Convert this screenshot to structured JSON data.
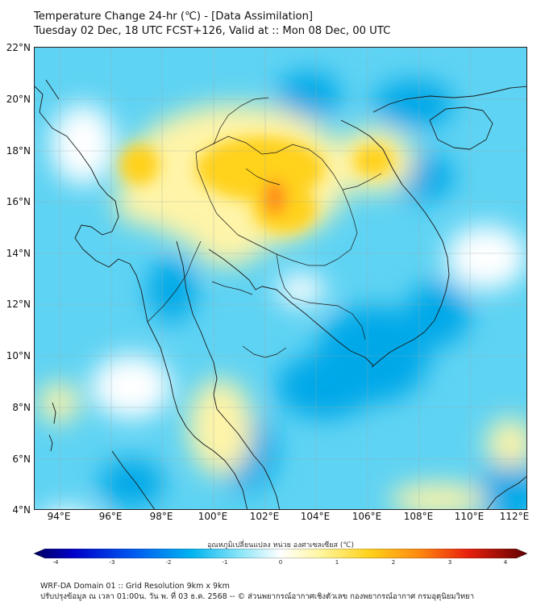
{
  "title": {
    "line1": "Temperature Change 24-hr (℃) - [Data Assimilation]",
    "line2": "Tuesday 02 Dec, 18 UTC FCST+126, Valid at :: Mon 08 Dec, 00 UTC"
  },
  "map": {
    "lat_labels": [
      "22°N",
      "20°N",
      "18°N",
      "16°N",
      "14°N",
      "12°N",
      "10°N",
      "8°N",
      "6°N",
      "4°N"
    ],
    "lon_labels": [
      "94°E",
      "96°E",
      "98°E",
      "100°E",
      "102°E",
      "104°E",
      "106°E",
      "108°E",
      "110°E",
      "112°E"
    ],
    "colors": {
      "cold_strong": "#00a8e8",
      "cold": "#5fd3f3",
      "neutral": "#ffffff",
      "warm_light": "#fff4a8",
      "warm": "#ffd21a",
      "hot": "#ff8c1a",
      "coast": "#1a1a1a"
    }
  },
  "colorbar": {
    "label": "อุณหภูมิเปลี่ยนแปลง หน่วย องศาเซลเซียส (℃)",
    "ticks": [
      "-4",
      "-3",
      "-2",
      "-1",
      "0",
      "1",
      "2",
      "3",
      "4"
    ]
  },
  "footer": {
    "line1": "WRF-DA Domain 01 :: Grid Resolution 9km x 9km",
    "line2": "ปรับปรุงข้อมูล ณ เวลา 01:00น. วัน พ. ที่ 03 ธ.ค. 2568 -- © ส่วนพยากรณ์อากาศเชิงตัวเลข กองพยากรณ์อากาศ กรมอุตุนิยมวิทยา"
  }
}
